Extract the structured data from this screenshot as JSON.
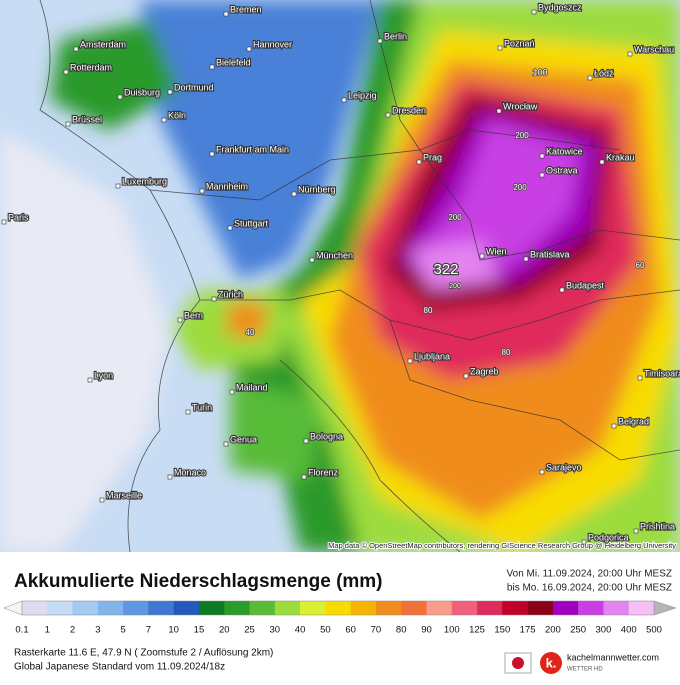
{
  "map": {
    "cities": [
      "Bremen",
      "Bydgoszcz",
      "Amsterdam",
      "Hannover",
      "Berlin",
      "Poznań",
      "Warschau",
      "Rotterdam",
      "Bielefeld",
      "Łódź",
      "Duisburg",
      "Dortmund",
      "Leipzig",
      "Dresden",
      "Wrocław",
      "Brüssel",
      "Köln",
      "Prag",
      "Katowice",
      "Krakau",
      "Frankfurt am Main",
      "Ostrava",
      "Luxemburg",
      "Mannheim",
      "Nürnberg",
      "Paris",
      "Stuttgart",
      "Wien",
      "Bratislava",
      "München",
      "Budapest",
      "Zürich",
      "Bern",
      "Ljubljana",
      "Zagreb",
      "Timisoara",
      "Lyon",
      "Mailand",
      "Turin",
      "Belgrad",
      "Genua",
      "Bologna",
      "Sarajevo",
      "Monaco",
      "Florenz",
      "Marseille",
      "Podgorica",
      "Prishtina"
    ],
    "contour_labels": [
      "100",
      "200",
      "200",
      "200",
      "322",
      "200",
      "80",
      "40",
      "80",
      "60"
    ],
    "attribution": "Map data © OpenStreetMap contributors, rendering GIScience Research Group @ Heidelberg University"
  },
  "legend": {
    "title": "Akkumulierte Niederschlagsmenge (mm)",
    "valid_from": "Von Mi. 11.09.2024, 20:00 Uhr MESZ",
    "valid_to": "bis Mo. 16.09.2024, 20:00 Uhr MESZ",
    "ticks": [
      "0.1",
      "1",
      "2",
      "3",
      "5",
      "7",
      "10",
      "15",
      "20",
      "25",
      "30",
      "40",
      "50",
      "60",
      "70",
      "80",
      "90",
      "100",
      "125",
      "150",
      "175",
      "200",
      "250",
      "300",
      "400",
      "500"
    ],
    "colors": [
      "#dcdcf0",
      "#c4dcf6",
      "#a4caf2",
      "#84b4ee",
      "#5e98e2",
      "#3e78d2",
      "#2458bc",
      "#0c7a20",
      "#2a9a2a",
      "#58bc38",
      "#9cdc3c",
      "#dcf030",
      "#f8dc00",
      "#f4b400",
      "#f08c1c",
      "#f07038",
      "#f89c8c",
      "#f0607c",
      "#e02c5c",
      "#c00028",
      "#8c0018",
      "#a000c0",
      "#c840e4",
      "#e484f0",
      "#f4c0f4"
    ]
  },
  "footer": {
    "line1": "Rasterkarte 11.6 E, 47.9 N ( Zoomstufe 2 / Auflösung 2km)",
    "line2": "Global Japanese Standard vom  11.09.2024/18z",
    "brand": "kachelmannwetter.com",
    "brand_sub": "WETTER HD"
  }
}
